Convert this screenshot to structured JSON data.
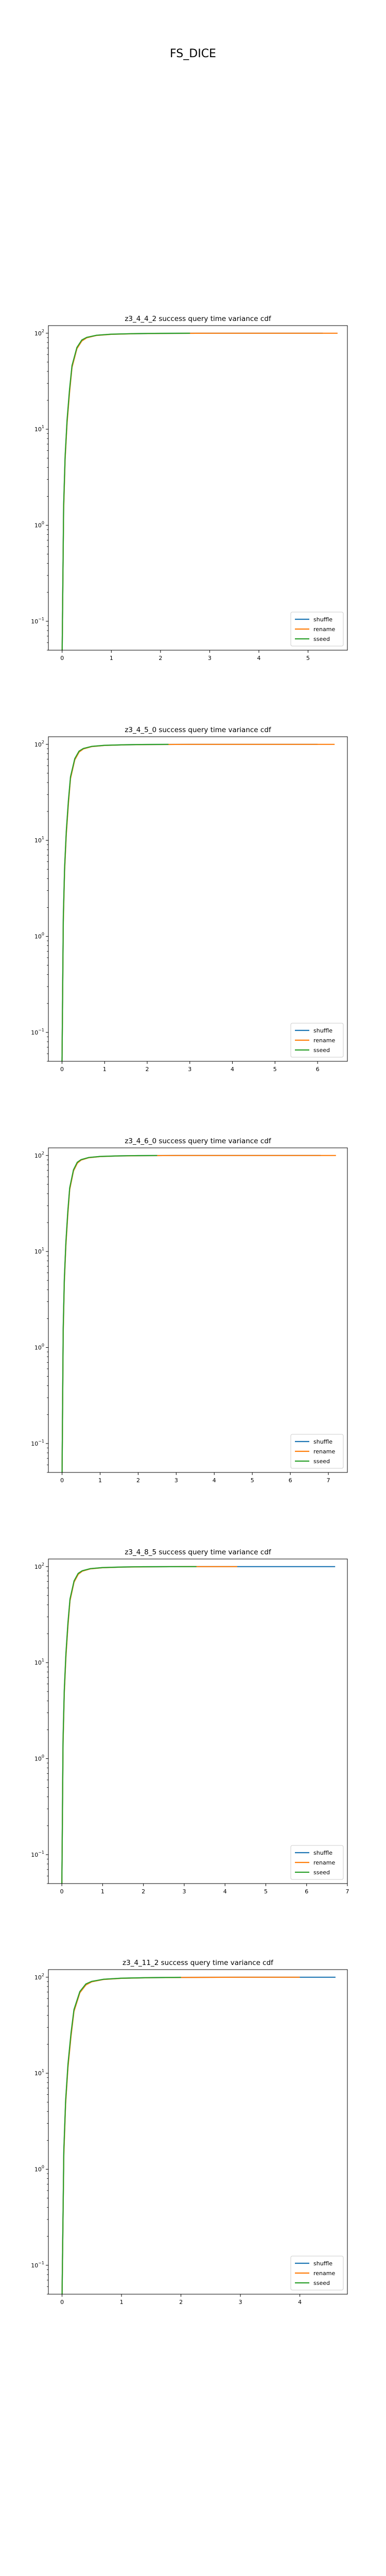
{
  "figure": {
    "suptitle": "FS_DICE"
  },
  "colors": {
    "shuffle": "#1f77b4",
    "rename": "#ff7f0e",
    "sseed": "#2ca02c"
  },
  "chart_data": [
    {
      "type": "line",
      "title": "z3_4_4_2 success query time variance cdf",
      "xlim": [
        -0.28,
        5.8
      ],
      "xticks": [
        0,
        1,
        2,
        3,
        4,
        5
      ],
      "yscale": "log",
      "ylim": [
        0.05,
        120
      ],
      "yticks": [
        {
          "value": 0.1,
          "base": "10",
          "exp": "−1"
        },
        {
          "value": 1,
          "base": "10",
          "exp": "0"
        },
        {
          "value": 10,
          "base": "10",
          "exp": "1"
        },
        {
          "value": 100,
          "base": "10",
          "exp": "2"
        }
      ],
      "legend": "lower-right",
      "grid": false,
      "series": [
        {
          "name": "shuffle",
          "x": [
            0.0,
            0.03,
            0.06,
            0.1,
            0.15,
            0.2,
            0.3,
            0.4,
            0.5,
            0.7,
            1.0,
            1.5,
            2.0,
            3.0,
            5.3
          ],
          "y": [
            0.05,
            1.5,
            5,
            12,
            25,
            45,
            70,
            84,
            90,
            95,
            97.5,
            99,
            99.6,
            99.9,
            100
          ]
        },
        {
          "name": "rename",
          "x": [
            0.0,
            0.03,
            0.06,
            0.1,
            0.15,
            0.2,
            0.3,
            0.4,
            0.5,
            0.7,
            1.0,
            1.5,
            2.0,
            3.0,
            5.6
          ],
          "y": [
            0.05,
            1.4,
            4.8,
            11.5,
            24,
            44,
            69,
            83,
            89.5,
            94.8,
            97.4,
            98.9,
            99.5,
            99.9,
            100
          ]
        },
        {
          "name": "sseed",
          "x": [
            0.0,
            0.03,
            0.06,
            0.1,
            0.15,
            0.2,
            0.3,
            0.4,
            0.5,
            0.7,
            1.0,
            1.5,
            2.0,
            2.6
          ],
          "y": [
            0.05,
            1.6,
            5.2,
            12.5,
            26,
            46,
            71,
            85,
            90.5,
            95.3,
            97.7,
            99.1,
            99.7,
            100
          ]
        }
      ]
    },
    {
      "type": "line",
      "title": "z3_4_5_0 success query time variance cdf",
      "xlim": [
        -0.32,
        6.7
      ],
      "xticks": [
        0,
        1,
        2,
        3,
        4,
        5,
        6
      ],
      "yscale": "log",
      "ylim": [
        0.05,
        120
      ],
      "yticks": [
        {
          "value": 0.1,
          "base": "10",
          "exp": "−1"
        },
        {
          "value": 1,
          "base": "10",
          "exp": "0"
        },
        {
          "value": 10,
          "base": "10",
          "exp": "1"
        },
        {
          "value": 100,
          "base": "10",
          "exp": "2"
        }
      ],
      "legend": "lower-right",
      "grid": false,
      "series": [
        {
          "name": "shuffle",
          "x": [
            0.0,
            0.03,
            0.06,
            0.1,
            0.15,
            0.2,
            0.3,
            0.4,
            0.5,
            0.7,
            1.0,
            1.5,
            2.0,
            3.0,
            6.0
          ],
          "y": [
            0.05,
            1.5,
            5,
            12,
            25,
            45,
            70,
            84,
            90,
            95,
            97.5,
            99,
            99.6,
            99.9,
            100
          ]
        },
        {
          "name": "rename",
          "x": [
            0.0,
            0.03,
            0.06,
            0.1,
            0.15,
            0.2,
            0.3,
            0.4,
            0.5,
            0.7,
            1.0,
            1.5,
            2.0,
            3.0,
            6.4
          ],
          "y": [
            0.05,
            1.4,
            4.8,
            11.5,
            24,
            44,
            69,
            83,
            89.5,
            94.8,
            97.4,
            98.9,
            99.5,
            99.9,
            100
          ]
        },
        {
          "name": "sseed",
          "x": [
            0.0,
            0.03,
            0.06,
            0.1,
            0.15,
            0.2,
            0.3,
            0.4,
            0.5,
            0.7,
            1.0,
            1.5,
            2.0,
            2.5
          ],
          "y": [
            0.05,
            1.6,
            5.2,
            12.5,
            26,
            46,
            71,
            85,
            90.5,
            95.3,
            97.7,
            99.1,
            99.7,
            100
          ]
        }
      ]
    },
    {
      "type": "line",
      "title": "z3_4_6_0 success query time variance cdf",
      "xlim": [
        -0.36,
        7.5
      ],
      "xticks": [
        0,
        1,
        2,
        3,
        4,
        5,
        6,
        7
      ],
      "yscale": "log",
      "ylim": [
        0.05,
        120
      ],
      "yticks": [
        {
          "value": 0.1,
          "base": "10",
          "exp": "−1"
        },
        {
          "value": 1,
          "base": "10",
          "exp": "0"
        },
        {
          "value": 10,
          "base": "10",
          "exp": "1"
        },
        {
          "value": 100,
          "base": "10",
          "exp": "2"
        }
      ],
      "legend": "lower-right",
      "grid": false,
      "series": [
        {
          "name": "shuffle",
          "x": [
            0.0,
            0.03,
            0.06,
            0.1,
            0.15,
            0.2,
            0.3,
            0.4,
            0.5,
            0.7,
            1.0,
            1.5,
            2.0,
            3.0,
            6.8
          ],
          "y": [
            0.05,
            1.5,
            5,
            12,
            25,
            45,
            70,
            84,
            90,
            95,
            97.5,
            99,
            99.6,
            99.9,
            100
          ]
        },
        {
          "name": "rename",
          "x": [
            0.0,
            0.03,
            0.06,
            0.1,
            0.15,
            0.2,
            0.3,
            0.4,
            0.5,
            0.7,
            1.0,
            1.5,
            2.0,
            3.0,
            7.2
          ],
          "y": [
            0.05,
            1.4,
            4.8,
            11.5,
            24,
            44,
            69,
            83,
            89.5,
            94.8,
            97.4,
            98.9,
            99.5,
            99.9,
            100
          ]
        },
        {
          "name": "sseed",
          "x": [
            0.0,
            0.03,
            0.06,
            0.1,
            0.15,
            0.2,
            0.3,
            0.4,
            0.5,
            0.7,
            1.0,
            1.5,
            2.0,
            2.5
          ],
          "y": [
            0.05,
            1.6,
            5.2,
            12.5,
            26,
            46,
            71,
            85,
            90.5,
            95.3,
            97.7,
            99.1,
            99.7,
            100
          ]
        }
      ]
    },
    {
      "type": "line",
      "title": "z3_4_8_5 success query time variance cdf",
      "xlim": [
        -0.33,
        7.0
      ],
      "xticks": [
        0,
        1,
        2,
        3,
        4,
        5,
        6,
        7
      ],
      "yscale": "log",
      "ylim": [
        0.05,
        120
      ],
      "yticks": [
        {
          "value": 0.1,
          "base": "10",
          "exp": "−1"
        },
        {
          "value": 1,
          "base": "10",
          "exp": "0"
        },
        {
          "value": 10,
          "base": "10",
          "exp": "1"
        },
        {
          "value": 100,
          "base": "10",
          "exp": "2"
        }
      ],
      "legend": "lower-right",
      "grid": false,
      "series": [
        {
          "name": "shuffle",
          "x": [
            0.0,
            0.03,
            0.06,
            0.1,
            0.15,
            0.2,
            0.3,
            0.4,
            0.5,
            0.7,
            1.0,
            1.5,
            2.0,
            3.0,
            6.7
          ],
          "y": [
            0.05,
            1.5,
            5,
            12,
            25,
            45,
            70,
            84,
            90,
            95,
            97.5,
            99,
            99.6,
            99.9,
            100
          ]
        },
        {
          "name": "rename",
          "x": [
            0.0,
            0.03,
            0.06,
            0.1,
            0.15,
            0.2,
            0.3,
            0.4,
            0.5,
            0.7,
            1.0,
            1.5,
            2.0,
            3.0,
            4.3
          ],
          "y": [
            0.05,
            1.4,
            4.8,
            11.5,
            24,
            44,
            69,
            83,
            89.5,
            94.8,
            97.4,
            98.9,
            99.5,
            99.9,
            100
          ]
        },
        {
          "name": "sseed",
          "x": [
            0.0,
            0.03,
            0.06,
            0.1,
            0.15,
            0.2,
            0.3,
            0.4,
            0.5,
            0.7,
            1.0,
            1.5,
            2.0,
            3.3
          ],
          "y": [
            0.05,
            1.6,
            5.2,
            12.5,
            26,
            46,
            71,
            85,
            90.5,
            95.3,
            97.7,
            99.1,
            99.7,
            100
          ]
        }
      ]
    },
    {
      "type": "line",
      "title": "z3_4_11_2 success query time variance cdf",
      "xlim": [
        -0.23,
        4.8
      ],
      "xticks": [
        0,
        1,
        2,
        3,
        4
      ],
      "yscale": "log",
      "ylim": [
        0.05,
        120
      ],
      "yticks": [
        {
          "value": 0.1,
          "base": "10",
          "exp": "−1"
        },
        {
          "value": 1,
          "base": "10",
          "exp": "0"
        },
        {
          "value": 10,
          "base": "10",
          "exp": "1"
        },
        {
          "value": 100,
          "base": "10",
          "exp": "2"
        }
      ],
      "legend": "lower-right",
      "grid": false,
      "series": [
        {
          "name": "shuffle",
          "x": [
            0.0,
            0.03,
            0.06,
            0.1,
            0.15,
            0.2,
            0.3,
            0.4,
            0.5,
            0.7,
            1.0,
            1.5,
            2.0,
            3.0,
            4.6
          ],
          "y": [
            0.05,
            1.5,
            5,
            12,
            25,
            45,
            70,
            84,
            90,
            95,
            97.5,
            99,
            99.6,
            99.9,
            100
          ]
        },
        {
          "name": "rename",
          "x": [
            0.0,
            0.03,
            0.06,
            0.1,
            0.15,
            0.2,
            0.3,
            0.4,
            0.5,
            0.7,
            1.0,
            1.5,
            2.0,
            3.0,
            4.0
          ],
          "y": [
            0.05,
            1.4,
            4.8,
            11.5,
            24,
            44,
            69,
            83,
            89.5,
            94.8,
            97.4,
            98.9,
            99.5,
            99.9,
            100
          ]
        },
        {
          "name": "sseed",
          "x": [
            0.0,
            0.03,
            0.06,
            0.1,
            0.15,
            0.2,
            0.3,
            0.4,
            0.5,
            0.7,
            1.0,
            1.5,
            2.0
          ],
          "y": [
            0.05,
            1.6,
            5.2,
            12.5,
            26,
            46,
            71,
            85,
            90.5,
            95.3,
            97.7,
            99.1,
            99.7
          ]
        }
      ]
    }
  ]
}
